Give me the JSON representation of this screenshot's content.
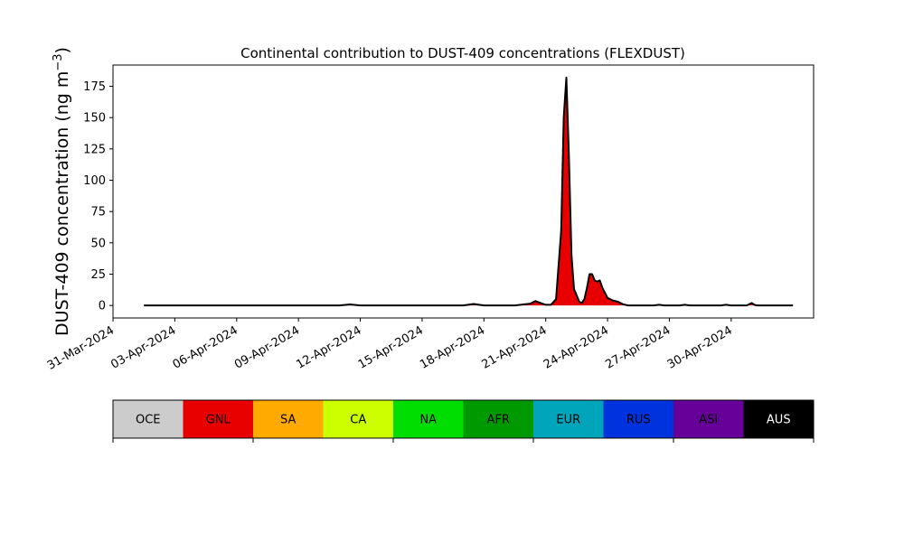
{
  "chart_data": {
    "type": "area",
    "title": "Continental contribution to DUST-409 concentrations (FLEXDUST)",
    "ylabel_main": "DUST-409 concentration (ng m",
    "ylabel_sup": "−3",
    "ylabel_close": ")",
    "xlabel": "",
    "ylim": [
      -10,
      192
    ],
    "xlim": [
      "2024-03-31T00:00",
      "2024-05-04T00:00"
    ],
    "yticks": [
      0,
      25,
      50,
      75,
      100,
      125,
      150,
      175
    ],
    "xticks": [
      {
        "date": "2024-03-31",
        "label": "31-Mar-2024"
      },
      {
        "date": "2024-04-03",
        "label": "03-Apr-2024"
      },
      {
        "date": "2024-04-06",
        "label": "06-Apr-2024"
      },
      {
        "date": "2024-04-09",
        "label": "09-Apr-2024"
      },
      {
        "date": "2024-04-12",
        "label": "12-Apr-2024"
      },
      {
        "date": "2024-04-15",
        "label": "15-Apr-2024"
      },
      {
        "date": "2024-04-18",
        "label": "18-Apr-2024"
      },
      {
        "date": "2024-04-21",
        "label": "21-Apr-2024"
      },
      {
        "date": "2024-04-24",
        "label": "24-Apr-2024"
      },
      {
        "date": "2024-04-27",
        "label": "27-Apr-2024"
      },
      {
        "date": "2024-04-30",
        "label": "30-Apr-2024"
      }
    ],
    "grid": false,
    "series_colors": {
      "background": "#000000",
      "GNL": "#e80000"
    },
    "total": [
      [
        "2024-04-01T12:00",
        0
      ],
      [
        "2024-04-11T00:00",
        0
      ],
      [
        "2024-04-11T12:00",
        0.8
      ],
      [
        "2024-04-12T00:00",
        0
      ],
      [
        "2024-04-17T00:00",
        0
      ],
      [
        "2024-04-17T12:00",
        1.2
      ],
      [
        "2024-04-18T00:00",
        0
      ],
      [
        "2024-04-19T12:00",
        0
      ],
      [
        "2024-04-20T06:00",
        1.5
      ],
      [
        "2024-04-20T12:00",
        3.5
      ],
      [
        "2024-04-20T18:00",
        2
      ],
      [
        "2024-04-21T00:00",
        0.5
      ],
      [
        "2024-04-21T06:00",
        0.5
      ],
      [
        "2024-04-21T12:00",
        5
      ],
      [
        "2024-04-21T18:00",
        60
      ],
      [
        "2024-04-21T21:00",
        150
      ],
      [
        "2024-04-22T00:00",
        182
      ],
      [
        "2024-04-22T03:00",
        120
      ],
      [
        "2024-04-22T06:00",
        40
      ],
      [
        "2024-04-22T09:00",
        13
      ],
      [
        "2024-04-22T12:00",
        8
      ],
      [
        "2024-04-22T15:00",
        3
      ],
      [
        "2024-04-22T18:00",
        2
      ],
      [
        "2024-04-22T21:00",
        5
      ],
      [
        "2024-04-23T00:00",
        14
      ],
      [
        "2024-04-23T03:00",
        25
      ],
      [
        "2024-04-23T06:00",
        25
      ],
      [
        "2024-04-23T09:00",
        20
      ],
      [
        "2024-04-23T12:00",
        19
      ],
      [
        "2024-04-23T15:00",
        20
      ],
      [
        "2024-04-23T18:00",
        14
      ],
      [
        "2024-04-24T00:00",
        6
      ],
      [
        "2024-04-24T06:00",
        4
      ],
      [
        "2024-04-24T12:00",
        3
      ],
      [
        "2024-04-24T18:00",
        1
      ],
      [
        "2024-04-25T00:00",
        0
      ],
      [
        "2024-04-26T06:00",
        0
      ],
      [
        "2024-04-26T12:00",
        0.5
      ],
      [
        "2024-04-26T18:00",
        0
      ],
      [
        "2024-04-27T12:00",
        0
      ],
      [
        "2024-04-27T18:00",
        0.5
      ],
      [
        "2024-04-28T00:00",
        0
      ],
      [
        "2024-04-29T12:00",
        0
      ],
      [
        "2024-04-29T18:00",
        0.5
      ],
      [
        "2024-04-30T00:00",
        0
      ],
      [
        "2024-04-30T18:00",
        0
      ],
      [
        "2024-04-30T21:00",
        1
      ],
      [
        "2024-05-01T00:00",
        2
      ],
      [
        "2024-05-01T03:00",
        0.5
      ],
      [
        "2024-05-01T06:00",
        0
      ],
      [
        "2024-05-03T00:00",
        0
      ]
    ],
    "legend": [
      {
        "label": "OCE",
        "color": "#cccccc",
        "text_color": "#000000"
      },
      {
        "label": "GNL",
        "color": "#e80000",
        "text_color": "#000000"
      },
      {
        "label": "SA",
        "color": "#ffaa00",
        "text_color": "#000000"
      },
      {
        "label": "CA",
        "color": "#ccff00",
        "text_color": "#000000"
      },
      {
        "label": "NA",
        "color": "#00dd00",
        "text_color": "#000000"
      },
      {
        "label": "AFR",
        "color": "#009900",
        "text_color": "#000000"
      },
      {
        "label": "EUR",
        "color": "#00a5bb",
        "text_color": "#000000"
      },
      {
        "label": "RUS",
        "color": "#0033dd",
        "text_color": "#000000"
      },
      {
        "label": "ASI",
        "color": "#660099",
        "text_color": "#000000"
      },
      {
        "label": "AUS",
        "color": "#000000",
        "text_color": "#ffffff"
      }
    ]
  }
}
